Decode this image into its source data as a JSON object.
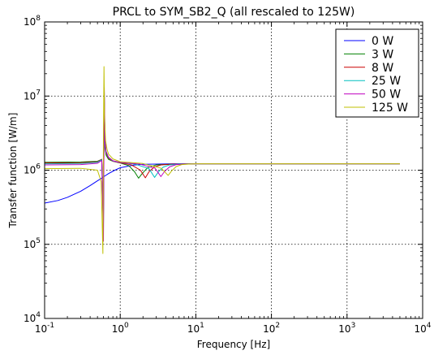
{
  "chart_data": {
    "type": "line",
    "title": "PRCL to SYM_SB2_Q (all rescaled to 125W)",
    "xlabel": "Frequency [Hz]",
    "ylabel": "Transfer function [W/m]",
    "xscale": "log",
    "yscale": "log",
    "xlim": [
      0.1,
      10000
    ],
    "ylim": [
      10000,
      100000000
    ],
    "grid": true,
    "legend_position": "top-right",
    "x_ticks": [
      {
        "value": 0.1,
        "base": "10",
        "exp": "-1"
      },
      {
        "value": 1,
        "base": "10",
        "exp": "0"
      },
      {
        "value": 10,
        "base": "10",
        "exp": "1"
      },
      {
        "value": 100,
        "base": "10",
        "exp": "2"
      },
      {
        "value": 1000,
        "base": "10",
        "exp": "3"
      },
      {
        "value": 10000,
        "base": "10",
        "exp": "4"
      }
    ],
    "y_ticks": [
      {
        "value": 10000,
        "base": "10",
        "exp": "4"
      },
      {
        "value": 100000,
        "base": "10",
        "exp": "5"
      },
      {
        "value": 1000000,
        "base": "10",
        "exp": "6"
      },
      {
        "value": 10000000,
        "base": "10",
        "exp": "7"
      },
      {
        "value": 100000000,
        "base": "10",
        "exp": "8"
      }
    ],
    "series": [
      {
        "name": "0 W",
        "color": "#0000ff",
        "x": [
          0.1,
          0.15,
          0.2,
          0.3,
          0.4,
          0.5,
          0.58,
          0.6,
          0.62,
          0.7,
          0.85,
          1.0,
          1.5,
          2.0,
          3.0,
          5.0,
          10,
          100,
          1000,
          5000
        ],
        "y": [
          360000,
          390000,
          430000,
          520000,
          620000,
          720000,
          790000,
          820000,
          830000,
          900000,
          1000000,
          1080000,
          1170000,
          1200000,
          1210000,
          1220000,
          1220000,
          1220000,
          1220000,
          1220000
        ]
      },
      {
        "name": "3 W",
        "color": "#008000",
        "x": [
          0.1,
          0.3,
          0.5,
          0.57,
          0.6,
          0.615,
          0.63,
          0.65,
          0.7,
          0.8,
          1.0,
          1.3,
          1.55,
          1.75,
          1.95,
          2.3,
          3.0,
          5.0,
          10,
          100,
          1000,
          5000
        ],
        "y": [
          1280000,
          1290000,
          1320000,
          1400000,
          250000,
          9000000,
          2000000,
          1600000,
          1400000,
          1320000,
          1250000,
          1150000,
          950000,
          780000,
          900000,
          1080000,
          1180000,
          1210000,
          1220000,
          1220000,
          1220000,
          1220000
        ]
      },
      {
        "name": "8 W",
        "color": "#cc0000",
        "x": [
          0.1,
          0.3,
          0.5,
          0.57,
          0.6,
          0.615,
          0.63,
          0.65,
          0.7,
          0.8,
          1.0,
          1.4,
          1.85,
          2.15,
          2.4,
          2.8,
          3.5,
          5.0,
          10,
          100,
          1000,
          5000
        ],
        "y": [
          1250000,
          1260000,
          1300000,
          1400000,
          200000,
          11000000,
          2200000,
          1700000,
          1450000,
          1320000,
          1260000,
          1180000,
          1000000,
          790000,
          950000,
          1100000,
          1180000,
          1210000,
          1220000,
          1220000,
          1220000,
          1220000
        ]
      },
      {
        "name": "25 W",
        "color": "#00bfbf",
        "x": [
          0.1,
          0.3,
          0.5,
          0.57,
          0.6,
          0.615,
          0.63,
          0.65,
          0.7,
          0.8,
          1.0,
          1.6,
          2.4,
          2.85,
          3.2,
          3.7,
          4.5,
          6.0,
          10,
          100,
          1000,
          5000
        ],
        "y": [
          1220000,
          1230000,
          1280000,
          1380000,
          150000,
          12000000,
          2300000,
          1750000,
          1480000,
          1330000,
          1270000,
          1200000,
          1050000,
          800000,
          950000,
          1100000,
          1180000,
          1210000,
          1220000,
          1220000,
          1220000,
          1220000
        ]
      },
      {
        "name": "50 W",
        "color": "#bf00bf",
        "x": [
          0.1,
          0.3,
          0.5,
          0.57,
          0.6,
          0.615,
          0.63,
          0.65,
          0.7,
          0.8,
          1.0,
          1.8,
          2.9,
          3.45,
          3.85,
          4.5,
          5.5,
          7.0,
          10,
          100,
          1000,
          5000
        ],
        "y": [
          1180000,
          1190000,
          1240000,
          1350000,
          110000,
          13000000,
          2500000,
          1800000,
          1500000,
          1340000,
          1270000,
          1210000,
          1060000,
          820000,
          960000,
          1110000,
          1190000,
          1210000,
          1220000,
          1220000,
          1220000,
          1220000
        ]
      },
      {
        "name": "125 W",
        "color": "#bfbf00",
        "x": [
          0.1,
          0.3,
          0.5,
          0.56,
          0.59,
          0.6,
          0.61,
          0.62,
          0.64,
          0.67,
          0.7,
          0.8,
          1.0,
          2.0,
          3.5,
          4.3,
          4.8,
          5.5,
          6.5,
          8.0,
          10,
          100,
          1000,
          5000
        ],
        "y": [
          1050000,
          1060000,
          1000000,
          700000,
          75000,
          3000000,
          25000000,
          5000000,
          2500000,
          1900000,
          1650000,
          1420000,
          1300000,
          1230000,
          1060000,
          850000,
          980000,
          1120000,
          1190000,
          1210000,
          1220000,
          1220000,
          1220000,
          1220000
        ]
      }
    ]
  }
}
